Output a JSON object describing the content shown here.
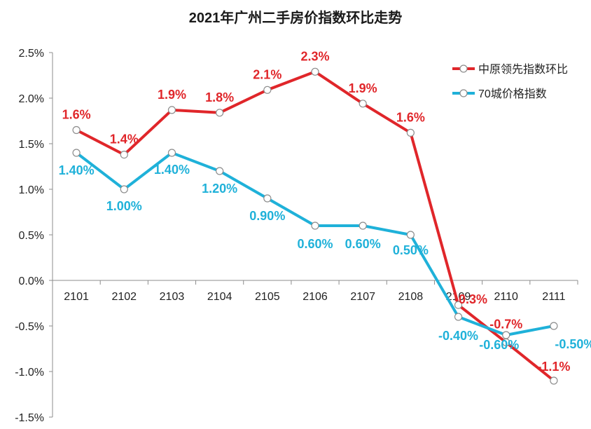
{
  "chart_data": {
    "type": "line",
    "title": "2021年广州二手房价指数环比走势",
    "categories": [
      "2101",
      "2102",
      "2103",
      "2104",
      "2105",
      "2106",
      "2107",
      "2108",
      "2109",
      "2110",
      "2111"
    ],
    "yticks": [
      "2.5%",
      "2.0%",
      "1.5%",
      "1.0%",
      "0.5%",
      "0.0%",
      "-0.5%",
      "-1.0%",
      "-1.5%"
    ],
    "ylim": [
      -1.5,
      2.5
    ],
    "grid": false,
    "legend_position": "top-right",
    "series": [
      {
        "name": "中原领先指数环比",
        "color": "#e0262a",
        "values": [
          1.65,
          1.38,
          1.87,
          1.84,
          2.09,
          2.29,
          1.94,
          1.62,
          -0.27,
          -0.68,
          -1.1
        ],
        "labels": [
          "1.6%",
          "1.4%",
          "1.9%",
          "1.8%",
          "2.1%",
          "2.3%",
          "1.9%",
          "1.6%",
          "-0.3%",
          "-0.7%",
          "-1.1%"
        ]
      },
      {
        "name": "70城价格指数",
        "color": "#1fb1d9",
        "values": [
          1.4,
          1.0,
          1.4,
          1.2,
          0.9,
          0.6,
          0.6,
          0.5,
          -0.4,
          -0.6,
          -0.5
        ],
        "labels": [
          "1.40%",
          "1.00%",
          "1.40%",
          "1.20%",
          "0.90%",
          "0.60%",
          "0.60%",
          "0.50%",
          "-0.40%",
          "-0.60%",
          "-0.50%"
        ]
      }
    ]
  }
}
